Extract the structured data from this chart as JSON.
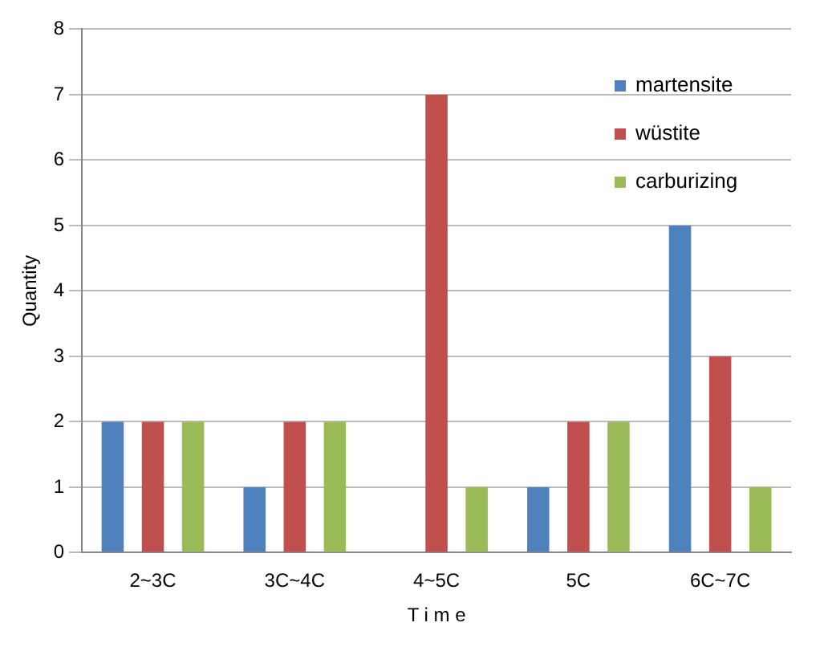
{
  "chart_data": {
    "type": "bar",
    "xlabel": "T i m e",
    "ylabel": "Quantity",
    "categories": [
      "2~3C",
      "3C~4C",
      "4~5C",
      "5C",
      "6C~7C"
    ],
    "series": [
      {
        "name": "martensite",
        "color": "#4f81bd",
        "values": [
          2,
          1,
          0,
          1,
          5
        ]
      },
      {
        "name": "wüstite",
        "color": "#c0504d",
        "values": [
          2,
          2,
          7,
          2,
          3
        ]
      },
      {
        "name": "carburizing",
        "color": "#9bbb59",
        "values": [
          2,
          2,
          1,
          2,
          1
        ]
      }
    ],
    "ylim": [
      0,
      8
    ],
    "yticks": [
      0,
      1,
      2,
      3,
      4,
      5,
      6,
      7,
      8
    ],
    "grid": "y",
    "legend": "top right"
  }
}
